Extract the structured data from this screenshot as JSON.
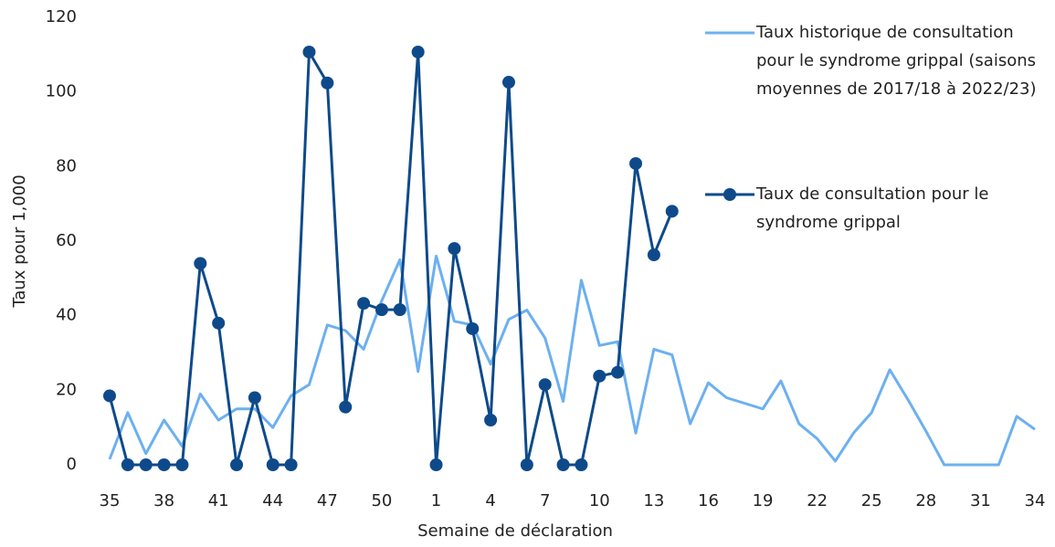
{
  "chart_data": {
    "type": "line",
    "x_label": "Semaine de déclaration",
    "y_label": "Taux pour 1,000",
    "categories": [
      "35",
      null,
      null,
      "38",
      null,
      null,
      "41",
      null,
      null,
      "44",
      null,
      null,
      "47",
      null,
      null,
      "50",
      null,
      null,
      "1",
      null,
      null,
      "4",
      null,
      null,
      "7",
      null,
      null,
      "10",
      null,
      null,
      "13",
      null,
      null,
      "16",
      null,
      null,
      "19",
      null,
      null,
      "22",
      null,
      null,
      "25",
      null,
      null,
      "28",
      null,
      null,
      "31",
      null,
      null,
      "34"
    ],
    "series": [
      {
        "name": "Taux historique de consultation pour le syndrome grippal (saisons moyennes de 2017/18 à 2022/23)",
        "color": "#6cb0f0",
        "marker": false,
        "values": [
          1.5,
          14,
          3,
          12,
          5,
          19,
          12,
          15,
          15,
          10,
          18.5,
          21.5,
          37.5,
          36,
          31,
          44,
          55,
          25,
          56,
          38.5,
          37.5,
          27,
          39,
          41.5,
          34,
          17,
          49.5,
          32,
          33,
          8.5,
          31,
          29.5,
          11,
          22,
          18,
          16.5,
          15,
          22.5,
          11,
          7,
          1,
          8.5,
          14,
          25.5,
          17.5,
          9,
          0,
          0,
          0,
          0,
          13,
          9.5
        ]
      },
      {
        "name": "Taux de consultation pour le syndrome grippal",
        "color": "#0e4a8a",
        "marker": true,
        "values": [
          18.5,
          0,
          0,
          0,
          0,
          54,
          38,
          0,
          18,
          0,
          0,
          110.7,
          102.4,
          15.5,
          43.3,
          41.6,
          41.6,
          110.7,
          0,
          58,
          36.5,
          12,
          102.6,
          0,
          21.5,
          0,
          0,
          23.8,
          24.8,
          80.8,
          56.3,
          68,
          null,
          null,
          null,
          null,
          null,
          null,
          null,
          null,
          null,
          null,
          null,
          null,
          null,
          null,
          null,
          null,
          null,
          null,
          null,
          null
        ]
      }
    ],
    "ylim": [
      0,
      120
    ],
    "yticks": [
      0,
      20,
      40,
      60,
      80,
      100,
      120
    ],
    "grid": false
  }
}
